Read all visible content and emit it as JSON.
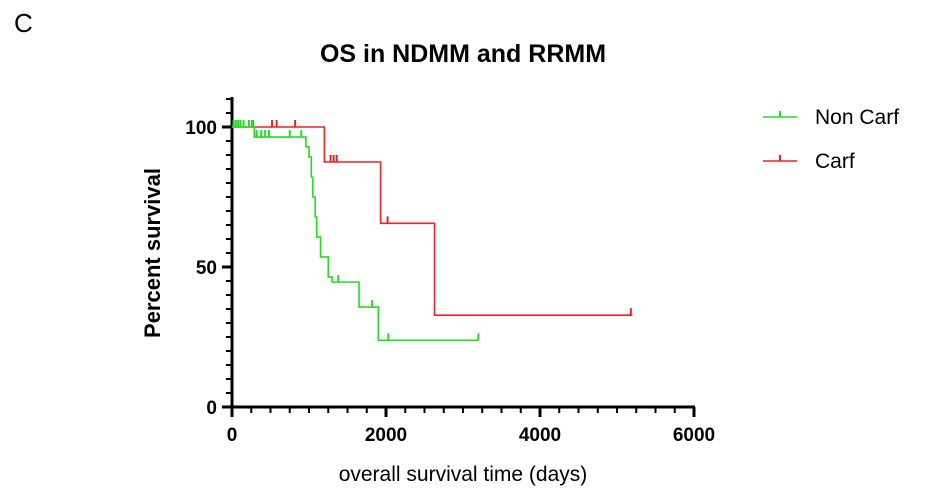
{
  "panel_label": "C",
  "chart_data": {
    "type": "line",
    "title": "OS in NDMM and RRMM",
    "xlabel": "overall survival time (days)",
    "ylabel": "Percent survival",
    "xlim": [
      0,
      6000
    ],
    "ylim": [
      0,
      100
    ],
    "x_ticks": [
      0,
      2000,
      4000,
      6000
    ],
    "y_ticks": [
      0,
      50,
      100
    ],
    "x_tick_labels": [
      "0",
      "2000",
      "4000",
      "6000"
    ],
    "y_tick_labels": [
      "0",
      "50",
      "100"
    ],
    "grid": false,
    "legend_position": "top-right",
    "series": [
      {
        "name": "Non Carf",
        "color": "#22dd22",
        "steps": [
          [
            0,
            100
          ],
          [
            290,
            96.4
          ],
          [
            960,
            92.9
          ],
          [
            1000,
            89.3
          ],
          [
            1030,
            82.1
          ],
          [
            1050,
            75.0
          ],
          [
            1080,
            67.9
          ],
          [
            1100,
            60.7
          ],
          [
            1150,
            53.6
          ],
          [
            1250,
            46.4
          ],
          [
            1300,
            44.6
          ],
          [
            1650,
            35.7
          ],
          [
            1900,
            23.8
          ],
          [
            3200,
            23.8
          ]
        ],
        "censored": [
          [
            20,
            100
          ],
          [
            50,
            100
          ],
          [
            80,
            100
          ],
          [
            110,
            100
          ],
          [
            150,
            100
          ],
          [
            220,
            100
          ],
          [
            260,
            100
          ],
          [
            320,
            96.4
          ],
          [
            380,
            96.4
          ],
          [
            430,
            96.4
          ],
          [
            480,
            96.4
          ],
          [
            750,
            96.4
          ],
          [
            900,
            96.4
          ],
          [
            1380,
            44.6
          ],
          [
            1820,
            35.7
          ],
          [
            2030,
            23.8
          ],
          [
            3200,
            23.8
          ]
        ]
      },
      {
        "name": "Carf",
        "color": "#ee2222",
        "steps": [
          [
            0,
            100
          ],
          [
            1200,
            87.5
          ],
          [
            1930,
            65.6
          ],
          [
            2630,
            32.8
          ],
          [
            5200,
            32.8
          ]
        ],
        "censored": [
          [
            270,
            100
          ],
          [
            520,
            100
          ],
          [
            580,
            100
          ],
          [
            820,
            100
          ],
          [
            1280,
            87.5
          ],
          [
            1320,
            87.5
          ],
          [
            1360,
            87.5
          ],
          [
            2020,
            65.6
          ],
          [
            5180,
            32.8
          ]
        ]
      }
    ]
  }
}
